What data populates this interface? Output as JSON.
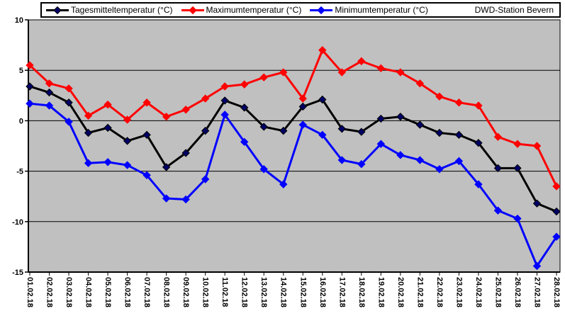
{
  "legend": {
    "items": [
      {
        "label": "Tagesmitteltemperatur (°C)"
      },
      {
        "label": "Maximumtemperatur (°C)"
      },
      {
        "label": "Minimumtemperatur (°C)"
      }
    ],
    "station_label": "DWD-Station Bevern"
  },
  "chart_data": {
    "type": "line",
    "title": "",
    "xlabel": "",
    "ylabel": "",
    "x": [
      "01.02.18",
      "02.02.18",
      "03.02.18",
      "04.02.18",
      "05.02.18",
      "06.02.18",
      "07.02.18",
      "08.02.18",
      "09.02.18",
      "10.02.18",
      "11.02.18",
      "12.02.18",
      "13.02.18",
      "14.02.18",
      "15.02.18",
      "16.02.18",
      "17.02.18",
      "18.02.18",
      "19.02.18",
      "20.02.18",
      "21.02.18",
      "22.02.18",
      "23.02.18",
      "24.02.18",
      "25.02.18",
      "26.02.18",
      "27.02.18",
      "28.02.18"
    ],
    "series": [
      {
        "name": "Tagesmitteltemperatur (°C)",
        "color": "#000000",
        "marker_fill": "#000066",
        "values": [
          3.4,
          2.8,
          1.8,
          -1.2,
          -0.7,
          -2.0,
          -1.4,
          -4.6,
          -3.2,
          -1.0,
          2.0,
          1.3,
          -0.6,
          -1.0,
          1.4,
          2.1,
          -0.8,
          -1.1,
          0.2,
          0.4,
          -0.4,
          -1.2,
          -1.4,
          -2.2,
          -4.7,
          -4.7,
          -8.2,
          -9.0
        ]
      },
      {
        "name": "Maximumtemperatur (°C)",
        "color": "#FF0000",
        "marker_fill": "#FF0000",
        "values": [
          5.5,
          3.7,
          3.2,
          0.5,
          1.6,
          0.1,
          1.8,
          0.4,
          1.1,
          2.2,
          3.4,
          3.6,
          4.3,
          4.8,
          2.2,
          7.0,
          4.8,
          5.9,
          5.2,
          4.8,
          3.7,
          2.4,
          1.8,
          1.5,
          -1.6,
          -2.3,
          -2.5,
          -6.5
        ]
      },
      {
        "name": "Minimumtemperatur (°C)",
        "color": "#0000FF",
        "marker_fill": "#0000FF",
        "values": [
          1.7,
          1.5,
          -0.1,
          -4.2,
          -4.1,
          -4.4,
          -5.4,
          -7.7,
          -7.8,
          -5.8,
          0.6,
          -2.1,
          -4.8,
          -6.3,
          -0.4,
          -1.4,
          -3.9,
          -4.3,
          -2.3,
          -3.4,
          -3.9,
          -4.8,
          -4.0,
          -6.3,
          -8.9,
          -9.7,
          -14.4,
          -11.5
        ]
      }
    ],
    "ylim": [
      -15,
      10
    ],
    "yticks": [
      10,
      5,
      0,
      -5,
      -10,
      -15
    ],
    "plot_bg": "#C0C0C0",
    "grid": "horizontal",
    "legend_position": "top",
    "marker": "diamond",
    "station": "DWD-Station Bevern"
  }
}
